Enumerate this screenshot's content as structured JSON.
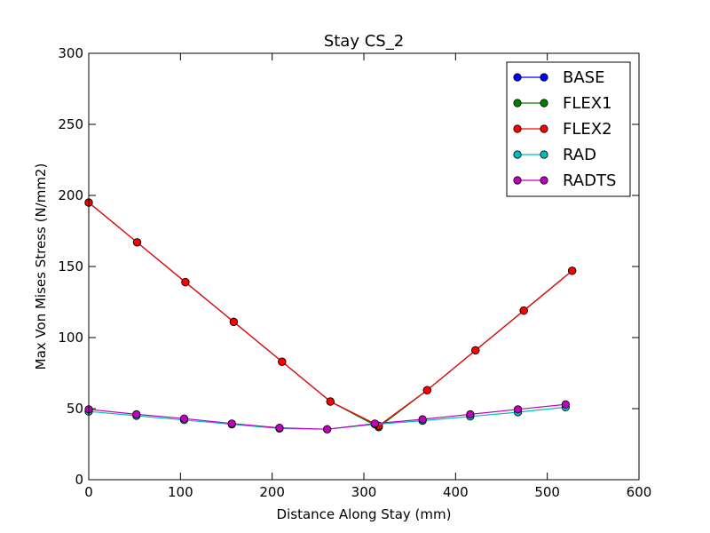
{
  "chart_data": {
    "type": "line",
    "title": "Stay CS_2",
    "xlabel": "Distance Along Stay (mm)",
    "ylabel": "Max Von Mises Stress (N/mm2)",
    "xlim": [
      0,
      600
    ],
    "ylim": [
      0,
      300
    ],
    "xticks": [
      "0",
      "100",
      "200",
      "300",
      "400",
      "500",
      "600"
    ],
    "yticks": [
      "0",
      "50",
      "100",
      "150",
      "200",
      "250",
      "300"
    ],
    "grid": false,
    "legend_position": "top-right",
    "series": [
      {
        "name": "BASE",
        "color": "#0000ff",
        "x": [
          0,
          52.7,
          105.4,
          158.1,
          210.8,
          263.5,
          316.2,
          369,
          421.7,
          474.4,
          527.1
        ],
        "y": [
          195,
          167,
          139,
          111,
          83,
          55,
          37,
          63,
          91,
          119,
          147
        ]
      },
      {
        "name": "FLEX1",
        "color": "#008000",
        "x": [
          0,
          52.7,
          105.4,
          158.1,
          210.8,
          263.5,
          316.2,
          369,
          421.7,
          474.4,
          527.1
        ],
        "y": [
          195,
          167,
          139,
          111,
          83,
          55,
          37,
          63,
          91,
          119,
          147
        ]
      },
      {
        "name": "FLEX2",
        "color": "#ff0000",
        "x": [
          0,
          52.7,
          105.4,
          158.1,
          210.8,
          263.5,
          316.2,
          369,
          421.7,
          474.4,
          527.1
        ],
        "y": [
          195,
          167,
          139,
          111,
          83,
          55,
          38,
          63,
          91,
          119,
          147
        ]
      },
      {
        "name": "RAD",
        "color": "#00bfbf",
        "x": [
          0,
          52,
          104,
          156,
          208,
          260,
          312,
          364,
          416,
          468,
          520
        ],
        "y": [
          48,
          45,
          42,
          39,
          36,
          35.5,
          39,
          41.5,
          44.5,
          47.5,
          51
        ]
      },
      {
        "name": "RADTS",
        "color": "#bf00bf",
        "x": [
          0,
          52,
          104,
          156,
          208,
          260,
          312,
          364,
          416,
          468,
          520
        ],
        "y": [
          49.5,
          46,
          43,
          39.5,
          36.5,
          35.5,
          39.5,
          42.5,
          46,
          49.5,
          53
        ]
      }
    ]
  }
}
